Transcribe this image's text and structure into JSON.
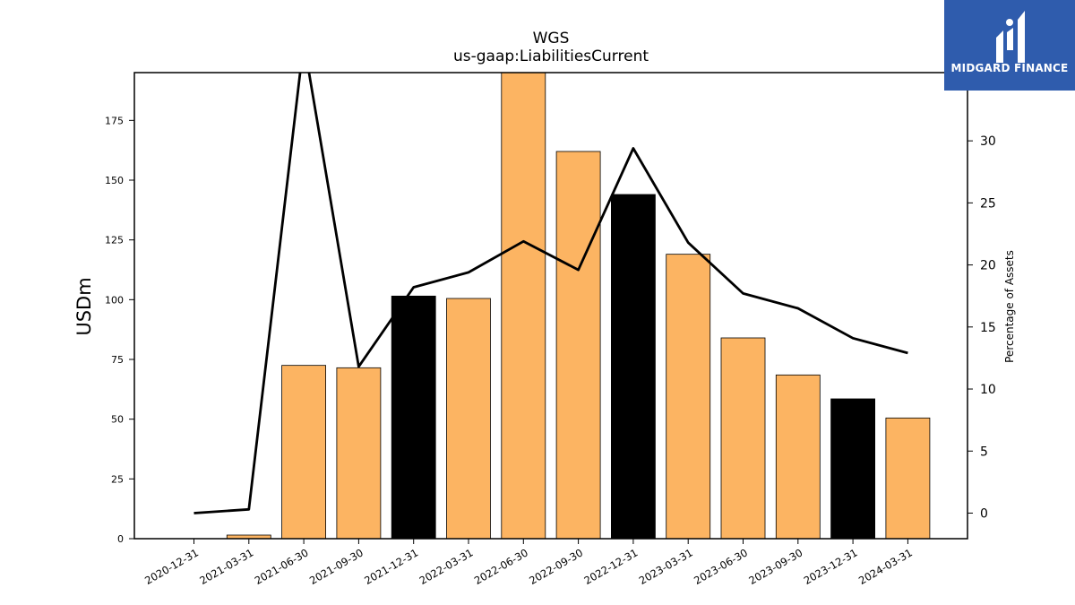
{
  "chart_data": {
    "type": "bar",
    "title": "WGS",
    "subtitle": "us-gaap:LiabilitiesCurrent",
    "ylabel": "USDm",
    "y2label": "Percentage of Assets",
    "categories": [
      "2020-12-31",
      "2021-03-31",
      "2021-06-30",
      "2021-09-30",
      "2021-12-31",
      "2022-03-31",
      "2022-06-30",
      "2022-09-30",
      "2022-12-31",
      "2023-03-31",
      "2023-06-30",
      "2023-09-30",
      "2023-12-31",
      "2024-03-31"
    ],
    "series": [
      {
        "type": "bar",
        "values": [
          0,
          1.5,
          72.5,
          71.5,
          101.5,
          100.5,
          196,
          162,
          144,
          119,
          84,
          68.5,
          58.5,
          50.5
        ],
        "colors": [
          "#fcb462",
          "#fcb462",
          "#fcb462",
          "#fcb462",
          "#000000",
          "#fcb462",
          "#fcb462",
          "#fcb462",
          "#000000",
          "#fcb462",
          "#fcb462",
          "#fcb462",
          "#000000",
          "#fcb462"
        ]
      },
      {
        "type": "line",
        "axis": "right",
        "values": [
          0,
          0.3,
          38,
          11.8,
          18.2,
          19.4,
          21.9,
          19.6,
          29.4,
          21.8,
          17.7,
          16.5,
          14.1,
          12.9
        ],
        "color": "#000000"
      }
    ],
    "ylim": [
      0,
      195
    ],
    "yticks": [
      0,
      25,
      50,
      75,
      100,
      125,
      150,
      175
    ],
    "y2lim": [
      -2.06,
      35.5
    ],
    "y2ticks": [
      0,
      5,
      10,
      15,
      20,
      25,
      30
    ],
    "grid": false
  },
  "logo": {
    "text": "MIDGARD FINANCE"
  }
}
